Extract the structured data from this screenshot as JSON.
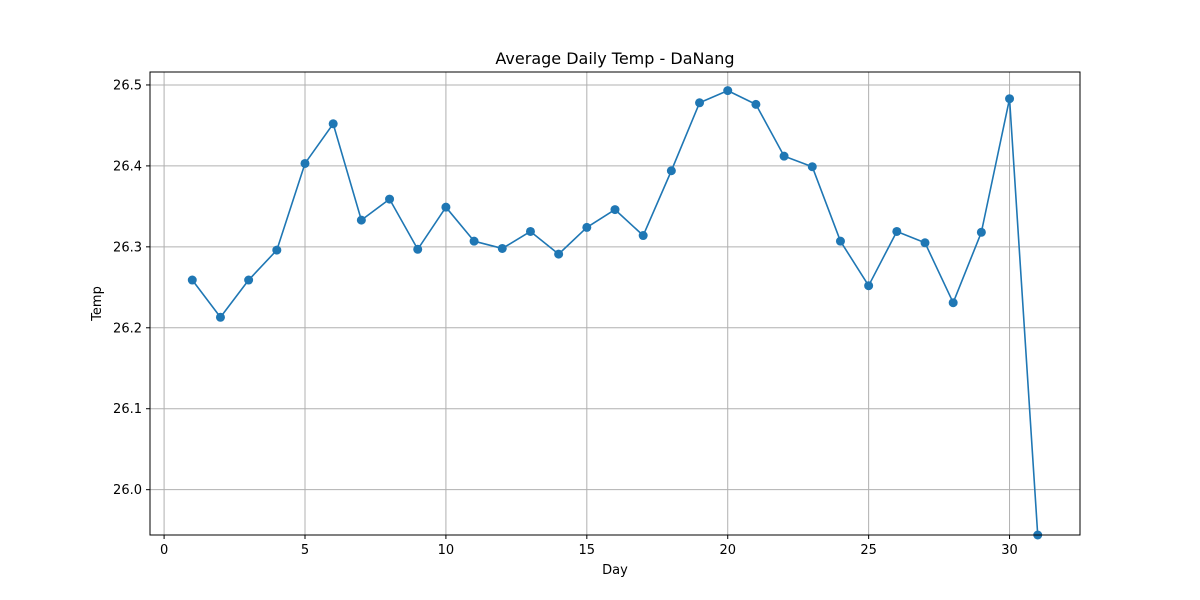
{
  "chart_data": {
    "type": "line",
    "title": "Average Daily Temp - DaNang",
    "xlabel": "Day",
    "ylabel": "Temp",
    "xlim": [
      -0.5,
      32.5
    ],
    "ylim": [
      25.944,
      26.516
    ],
    "xticks": [
      0,
      5,
      10,
      15,
      20,
      25,
      30
    ],
    "yticks": [
      26.0,
      26.1,
      26.2,
      26.3,
      26.4,
      26.5
    ],
    "ytick_labels": [
      "26.0",
      "26.1",
      "26.2",
      "26.3",
      "26.4",
      "26.5"
    ],
    "grid": true,
    "color": "#1f77b4",
    "marker": "circle",
    "series": [
      {
        "x": [
          1,
          2,
          3,
          4,
          5,
          6,
          7,
          8,
          9,
          10,
          11,
          12,
          13,
          14,
          15,
          16,
          17,
          18,
          19,
          20,
          21,
          22,
          23,
          24,
          25,
          26,
          27,
          28,
          29,
          30,
          31
        ],
        "values": [
          26.259,
          26.213,
          26.259,
          26.296,
          26.403,
          26.452,
          26.333,
          26.359,
          26.297,
          26.349,
          26.307,
          26.298,
          26.319,
          26.291,
          26.324,
          26.346,
          26.314,
          26.394,
          26.478,
          26.493,
          26.476,
          26.412,
          26.399,
          26.307,
          26.252,
          26.319,
          26.305,
          26.231,
          26.318,
          26.483,
          25.944
        ]
      }
    ]
  }
}
